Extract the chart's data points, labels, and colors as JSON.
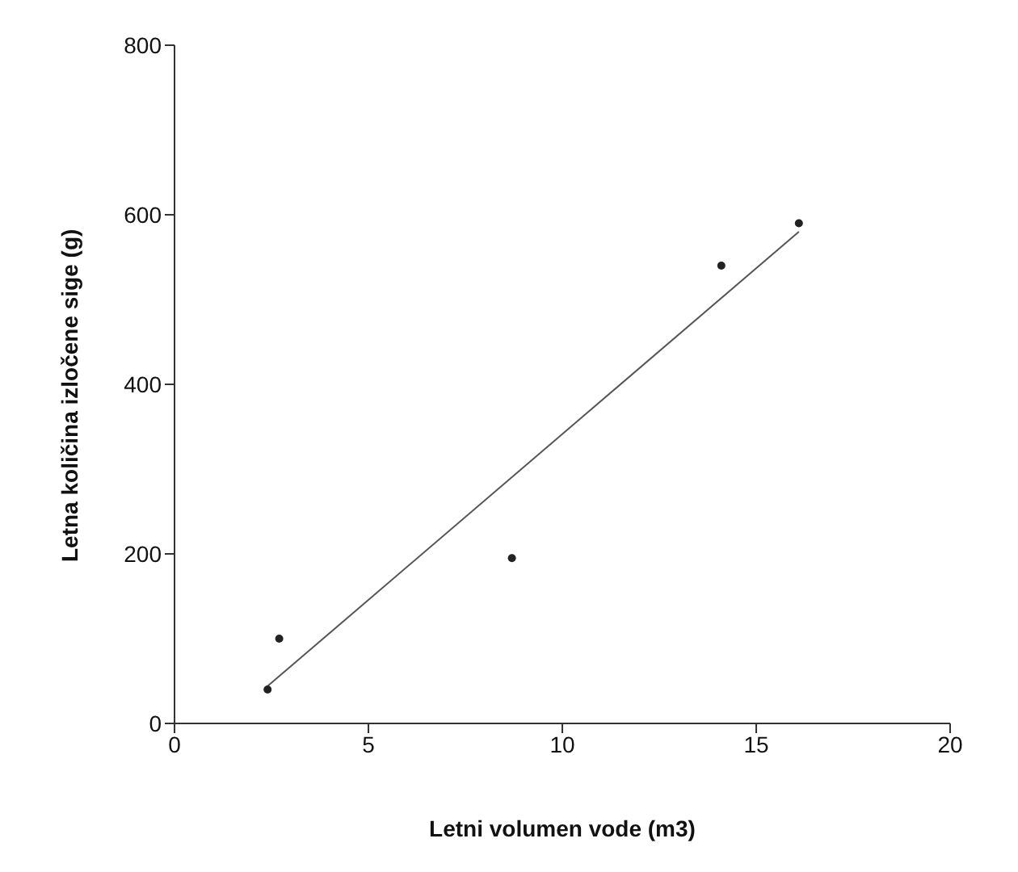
{
  "chart_data": {
    "type": "scatter",
    "xlabel": "Letni volumen vode (m3)",
    "ylabel": "Letna količina izločene sige (g)",
    "xlim": [
      0,
      20
    ],
    "xticks": [
      0,
      5,
      10,
      15,
      20
    ],
    "ylim": [
      0,
      800
    ],
    "yticks": [
      0,
      200,
      400,
      600,
      800
    ],
    "grid": false,
    "legend": false,
    "marker": "circle",
    "series": [
      {
        "color": "#222222",
        "x": [
          2.4,
          2.7,
          8.7,
          14.1,
          16.1
        ],
        "values": [
          40,
          100,
          195,
          540,
          590
        ]
      },
      {
        "type": "line",
        "color": "#555555",
        "line_style": "solid",
        "marker": "none",
        "x": [
          2.4,
          16.1
        ],
        "values": [
          44,
          580
        ]
      }
    ]
  }
}
